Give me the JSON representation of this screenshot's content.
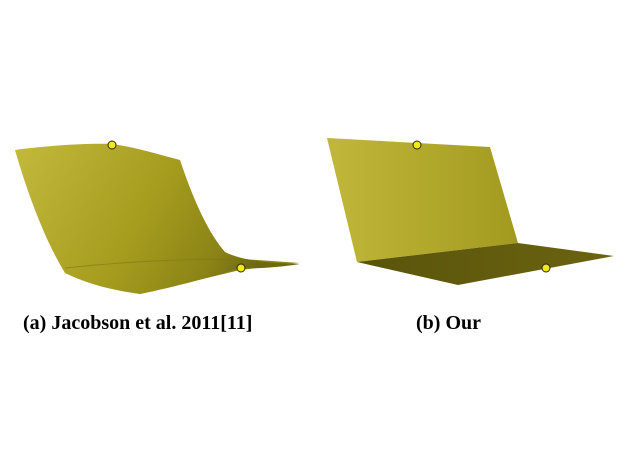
{
  "colors": {
    "surface_light": "#c3b93c",
    "surface_mid": "#a59c1e",
    "surface_dark": "#5d570d",
    "handle_fill": "#f2e81e",
    "handle_stroke": "#2a2a00"
  },
  "panels": [
    {
      "caption": "(a) Jacobson et al. 2011[11]"
    },
    {
      "caption": "(b) Our"
    }
  ]
}
